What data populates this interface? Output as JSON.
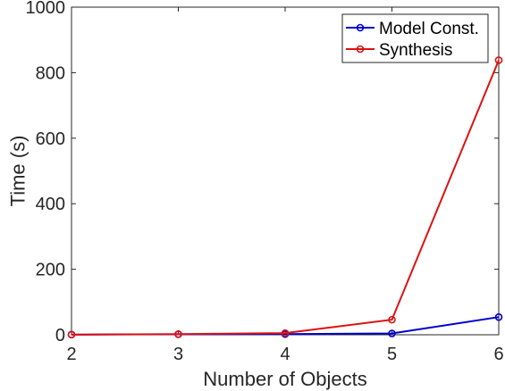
{
  "chart_data": {
    "type": "line",
    "title": "",
    "xlabel": "Number of Objects",
    "ylabel": "Time (s)",
    "x": [
      2,
      3,
      4,
      5,
      6
    ],
    "xlim": [
      2,
      6
    ],
    "ylim": [
      0,
      1000
    ],
    "xticks": [
      "2",
      "3",
      "4",
      "5",
      "6"
    ],
    "yticks": [
      "0",
      "200",
      "400",
      "600",
      "800",
      "1000"
    ],
    "grid": false,
    "legend_position": "top-right",
    "series": [
      {
        "name": "Model Const.",
        "color": "#0000cc",
        "values": [
          0.5,
          1.5,
          2,
          4,
          54
        ]
      },
      {
        "name": "Synthesis",
        "color": "#dd1111",
        "values": [
          0.5,
          2,
          5,
          46,
          838
        ]
      }
    ]
  }
}
